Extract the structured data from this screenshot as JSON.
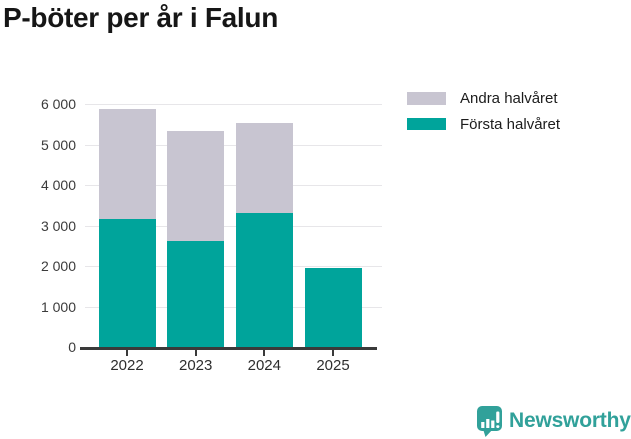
{
  "title": "P-böter per år i Falun",
  "colors": {
    "first_half": "#00a49b",
    "second_half": "#c8c5d1",
    "grid": "#e7e6e9",
    "axis": "#3a3a3a",
    "title_text": "#161616",
    "tick_text": "#3b3b3b",
    "logo_teal": "#31a19a"
  },
  "chart_data": {
    "type": "bar",
    "stacked": true,
    "title": "P-böter per år i Falun",
    "categories": [
      "2022",
      "2023",
      "2024",
      "2025"
    ],
    "series": [
      {
        "name": "Första halvåret",
        "color_key": "first_half",
        "values": [
          3170,
          2610,
          3300,
          1950
        ]
      },
      {
        "name": "Andra halvåret",
        "color_key": "second_half",
        "values": [
          2710,
          2720,
          2230,
          0
        ]
      }
    ],
    "totals": [
      5880,
      5330,
      5530,
      1950
    ],
    "xlabel": "",
    "ylabel": "",
    "ylim": [
      0,
      6000
    ],
    "ytick_values": [
      0,
      1000,
      2000,
      3000,
      4000,
      5000,
      6000
    ],
    "ytick_labels": [
      "0",
      "1 000",
      "2 000",
      "3 000",
      "4 000",
      "5 000",
      "6 000"
    ],
    "grid": true,
    "legend_position": "top-right"
  },
  "legend": {
    "items": [
      {
        "label": "Andra halvåret",
        "color_key": "second_half"
      },
      {
        "label": "Första halvåret",
        "color_key": "first_half"
      }
    ]
  },
  "footer": {
    "brand": "Newsworthy"
  }
}
